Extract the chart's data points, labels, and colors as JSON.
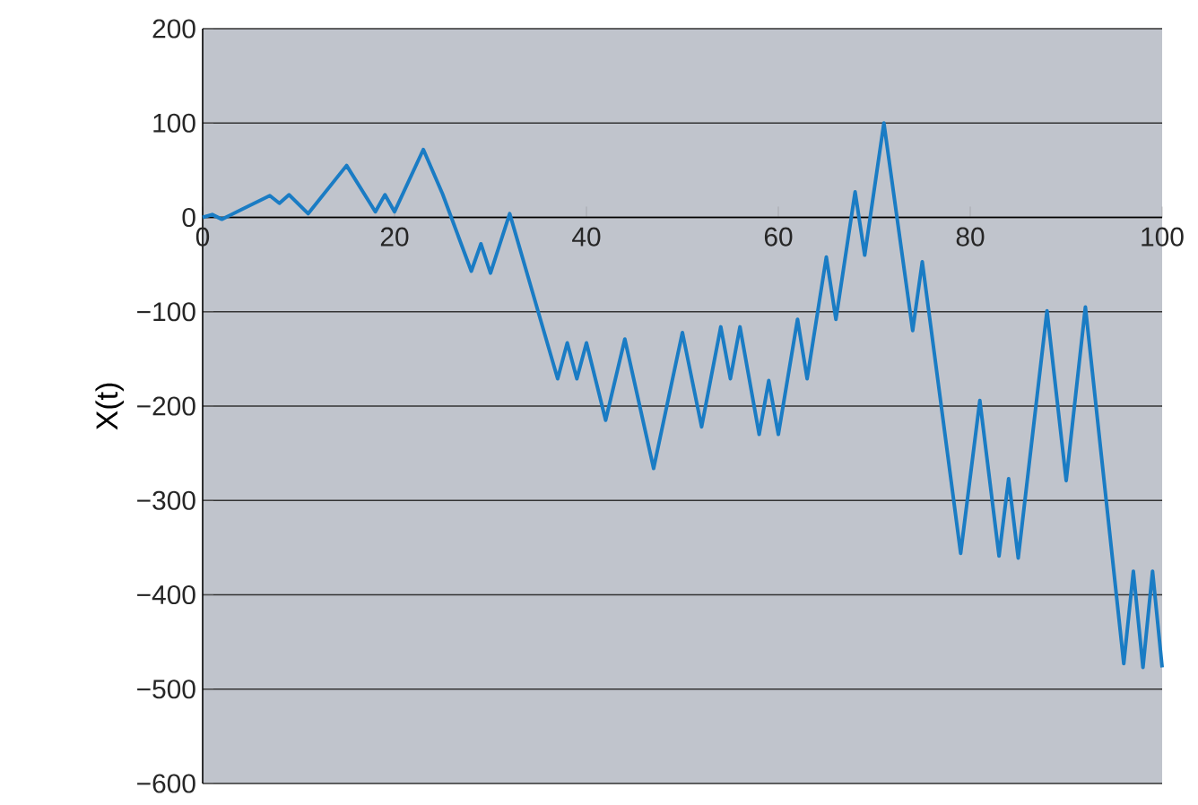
{
  "chart_data": {
    "type": "line",
    "ylabel": "X(t)",
    "color": "#1a7cc4",
    "x": [
      0,
      1,
      2,
      4,
      7,
      8,
      9,
      11,
      15,
      18,
      19,
      20,
      23,
      25,
      28,
      29,
      30,
      32,
      37,
      38,
      39,
      40,
      42,
      44,
      47,
      50,
      52,
      54,
      55,
      56,
      58,
      59,
      60,
      62,
      63,
      65,
      66,
      68,
      69,
      71,
      74,
      75,
      79,
      81,
      83,
      84,
      85,
      88,
      90,
      92,
      96,
      97,
      98,
      99,
      100
    ],
    "values": [
      0,
      3,
      -2,
      8,
      23,
      15,
      24,
      4,
      55,
      6,
      24,
      6,
      72,
      25,
      -57,
      -28,
      -59,
      4,
      -171,
      -133,
      -171,
      -133,
      -215,
      -129,
      -266,
      -122,
      -222,
      -116,
      -171,
      -116,
      -230,
      -173,
      -230,
      -108,
      -171,
      -42,
      -108,
      27,
      -40,
      100,
      -120,
      -47,
      -356,
      -194,
      -359,
      -277,
      -361,
      -99,
      -279,
      -95,
      -473,
      -375,
      -477,
      -375,
      -477
    ],
    "xlim": [
      0,
      100
    ],
    "xticks": [
      0,
      20,
      40,
      60,
      80,
      100
    ],
    "ylim": [
      -600,
      200
    ],
    "yticks": [
      200,
      100,
      0,
      {
        "value": -100,
        "label": "−100"
      },
      {
        "value": -200,
        "label": "−200"
      },
      {
        "value": -300,
        "label": "−300"
      },
      {
        "value": -400,
        "label": "−400"
      },
      {
        "value": -500,
        "label": "−500"
      },
      {
        "value": -600,
        "label": "−600"
      }
    ],
    "grid": "y",
    "marker": "none",
    "line_style": "solid"
  }
}
